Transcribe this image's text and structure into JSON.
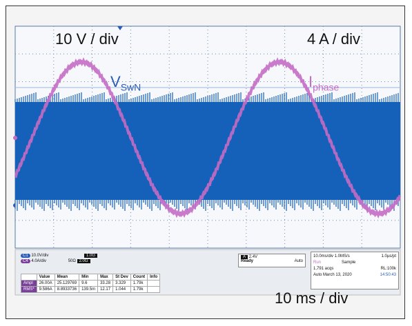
{
  "screen": {
    "volt_scale": "10 V / div",
    "amp_scale": "4 A / div",
    "time_scale": "10 ms / div",
    "traces": [
      {
        "main": "V",
        "sub": "SwN"
      },
      {
        "main": "I",
        "sub": "phase"
      }
    ]
  },
  "channels": [
    {
      "badge": "C1",
      "scale": "10.0V/div",
      "bandwidth": "1.0G"
    },
    {
      "badge": "C4",
      "scale": "4.0A/div",
      "impedance": "50Ω",
      "bandwidth": "2.0G"
    }
  ],
  "trigger": {
    "source": "A",
    "level": "2.4V",
    "state": "Ready",
    "mode": "Auto"
  },
  "timebase": {
    "setting": "10.0ms/div 1.0MS/s",
    "resolution": "1.0µs/pt",
    "run": "Run",
    "acq_mode": "Sample",
    "acqs": "1,791 acqs",
    "record": "RL:100k",
    "auto": "Auto",
    "date": "March 13, 2020",
    "time": "14:50:43"
  },
  "table": {
    "header": [
      "Value",
      "Mean",
      "Min",
      "Max",
      "St Dev",
      "Count",
      "Info"
    ],
    "rows": [
      [
        "Ampl",
        "26.00A",
        "25.129769",
        "9.6",
        "33.28",
        "3.329",
        "1.79k"
      ],
      [
        "RMS*",
        "9.586A",
        "8.8933736",
        "139.5m",
        "12.17",
        "1.044",
        "1.79k"
      ]
    ]
  }
}
